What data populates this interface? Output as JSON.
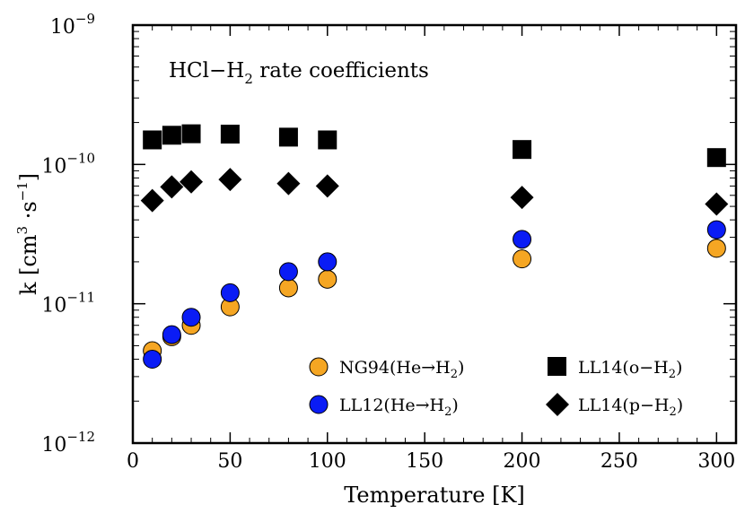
{
  "chart_data": {
    "type": "scatter",
    "title": "HCl−H",
    "title_sub": "2",
    "title_rest": " rate coefficients",
    "xlabel": "Temperature [K]",
    "ylabel_main": "k [cm",
    "ylabel_sup1": "3",
    "ylabel_mid": " ·s",
    "ylabel_sup2": "−1",
    "ylabel_end": "]",
    "xlim": [
      0,
      310
    ],
    "ylim": [
      1e-12,
      1e-09
    ],
    "yscale": "log",
    "x_ticks": [
      0,
      50,
      100,
      150,
      200,
      250,
      300
    ],
    "x_tick_labels": [
      "0",
      "50",
      "100",
      "150",
      "200",
      "250",
      "300"
    ],
    "y_ticks": [
      {
        "value": 1e-12,
        "base": "10",
        "exp": "−12"
      },
      {
        "value": 1e-11,
        "base": "10",
        "exp": "−11"
      },
      {
        "value": 1e-10,
        "base": "10",
        "exp": "−10"
      },
      {
        "value": 1e-09,
        "base": "10",
        "exp": "−9"
      }
    ],
    "legend_position": "lower-right",
    "series": [
      {
        "label_pre": "NG94(He→H",
        "label_sub": "2",
        "label_post": ")",
        "marker": "circle",
        "color": "#f5a623",
        "x": [
          10,
          20,
          30,
          50,
          80,
          100,
          200,
          300
        ],
        "y": [
          4.6e-12,
          5.8e-12,
          7e-12,
          9.5e-12,
          1.3e-11,
          1.5e-11,
          2.1e-11,
          2.5e-11
        ]
      },
      {
        "label_pre": "LL12(He→H",
        "label_sub": "2",
        "label_post": ")",
        "marker": "circle",
        "color": "#0a1cf5",
        "x": [
          10,
          20,
          30,
          50,
          80,
          100,
          200,
          300
        ],
        "y": [
          4e-12,
          6e-12,
          8e-12,
          1.2e-11,
          1.7e-11,
          2e-11,
          2.9e-11,
          3.4e-11
        ]
      },
      {
        "label_pre": "LL14(o−H",
        "label_sub": "2",
        "label_post": ")",
        "marker": "square",
        "color": "#000000",
        "x": [
          10,
          20,
          30,
          50,
          80,
          100,
          200,
          300
        ],
        "y": [
          1.5e-10,
          1.62e-10,
          1.66e-10,
          1.65e-10,
          1.57e-10,
          1.5e-10,
          1.28e-10,
          1.12e-10
        ]
      },
      {
        "label_pre": "LL14(p−H",
        "label_sub": "2",
        "label_post": ")",
        "marker": "diamond",
        "color": "#000000",
        "x": [
          10,
          20,
          30,
          50,
          80,
          100,
          200,
          300
        ],
        "y": [
          5.5e-11,
          6.9e-11,
          7.5e-11,
          7.8e-11,
          7.3e-11,
          7e-11,
          5.8e-11,
          5.2e-11
        ]
      }
    ]
  }
}
